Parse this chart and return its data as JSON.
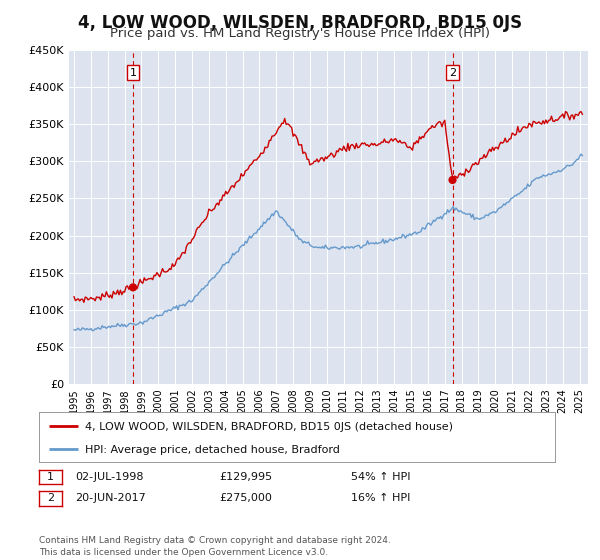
{
  "title": "4, LOW WOOD, WILSDEN, BRADFORD, BD15 0JS",
  "subtitle": "Price paid vs. HM Land Registry's House Price Index (HPI)",
  "title_fontsize": 12,
  "subtitle_fontsize": 9.5,
  "background_color": "#ffffff",
  "plot_bg_color": "#dde4ef",
  "grid_color": "#ffffff",
  "red_line_color": "#cc0000",
  "blue_line_color": "#6699cc",
  "red_dot_color": "#cc0000",
  "dashed_line_color": "#cc0000",
  "ylim": [
    0,
    450000
  ],
  "yticks": [
    0,
    50000,
    100000,
    150000,
    200000,
    250000,
    300000,
    350000,
    400000,
    450000
  ],
  "ytick_labels": [
    "£0",
    "£50K",
    "£100K",
    "£150K",
    "£200K",
    "£250K",
    "£300K",
    "£350K",
    "£400K",
    "£450K"
  ],
  "xlim_start": 1994.7,
  "xlim_end": 2025.5,
  "xtick_years": [
    1995,
    1996,
    1997,
    1998,
    1999,
    2000,
    2001,
    2002,
    2003,
    2004,
    2005,
    2006,
    2007,
    2008,
    2009,
    2010,
    2011,
    2012,
    2013,
    2014,
    2015,
    2016,
    2017,
    2018,
    2019,
    2020,
    2021,
    2022,
    2023,
    2024,
    2025
  ],
  "sale1_x": 1998.5,
  "sale1_y": 129995,
  "sale1_label": "1",
  "sale2_x": 2017.46,
  "sale2_y": 275000,
  "sale2_label": "2",
  "legend_label_red": "4, LOW WOOD, WILSDEN, BRADFORD, BD15 0JS (detached house)",
  "legend_label_blue": "HPI: Average price, detached house, Bradford",
  "annotation1_date": "02-JUL-1998",
  "annotation1_price": "£129,995",
  "annotation1_hpi": "54% ↑ HPI",
  "annotation2_date": "20-JUN-2017",
  "annotation2_price": "£275,000",
  "annotation2_hpi": "16% ↑ HPI",
  "footer": "Contains HM Land Registry data © Crown copyright and database right 2024.\nThis data is licensed under the Open Government Licence v3.0."
}
